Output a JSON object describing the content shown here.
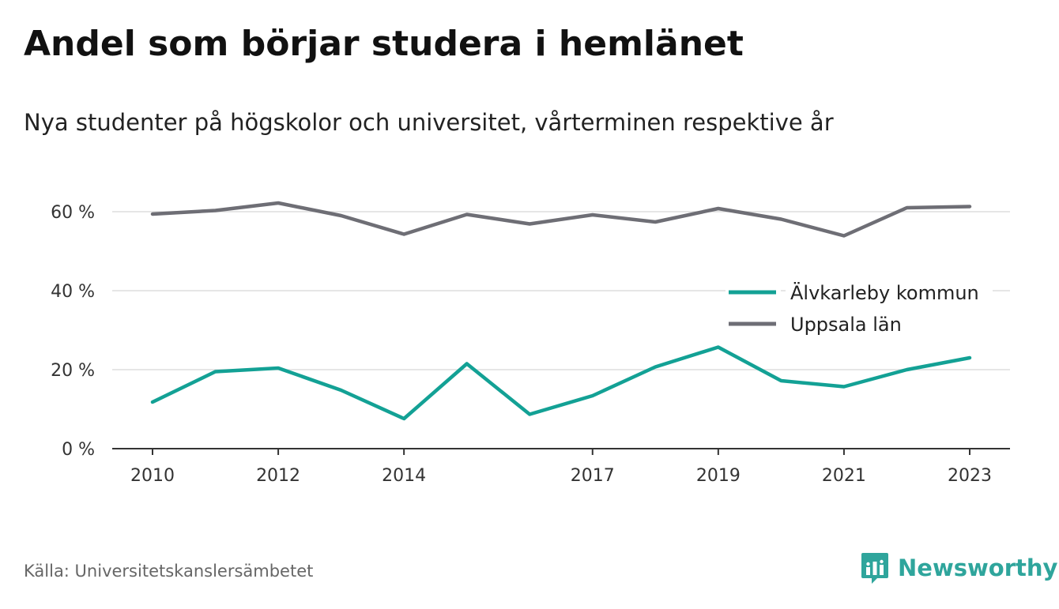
{
  "header": {
    "title": "Andel som börjar studera i hemlänet",
    "subtitle": "Nya studenter på högskolor och universitet, vårterminen respektive år"
  },
  "footer": {
    "source": "Källa: Universitetskanslersämbetet",
    "brand": "Newsworthy",
    "brand_icon": "bar-chart-speech-bubble-icon",
    "brand_color": "#2fa59c"
  },
  "chart_data": {
    "type": "line",
    "x": [
      2010,
      2011,
      2012,
      2013,
      2014,
      2015,
      2016,
      2017,
      2018,
      2019,
      2020,
      2021,
      2022,
      2023
    ],
    "xtick_labels": [
      "2010",
      "2012",
      "2014",
      "2017",
      "2019",
      "2021",
      "2023"
    ],
    "xtick_values": [
      2010,
      2012,
      2014,
      2017,
      2019,
      2021,
      2023
    ],
    "ylim": [
      0,
      70
    ],
    "yticks": [
      0,
      20,
      40,
      60
    ],
    "ytick_labels": [
      "0 %",
      "20 %",
      "40 %",
      "60 %"
    ],
    "grid": true,
    "legend_position": "right",
    "series": [
      {
        "name": "Älvkarleby kommun",
        "color": "#13a195",
        "values": [
          11.8,
          19.5,
          20.4,
          14.8,
          7.6,
          21.5,
          8.7,
          13.4,
          20.7,
          25.7,
          17.2,
          15.7,
          20.0,
          23.0
        ]
      },
      {
        "name": "Uppsala län",
        "color": "#6e6e75",
        "values": [
          59.4,
          60.3,
          62.2,
          59.0,
          54.3,
          59.3,
          56.9,
          59.2,
          57.4,
          60.8,
          58.1,
          53.9,
          61.0,
          61.3
        ]
      }
    ]
  }
}
